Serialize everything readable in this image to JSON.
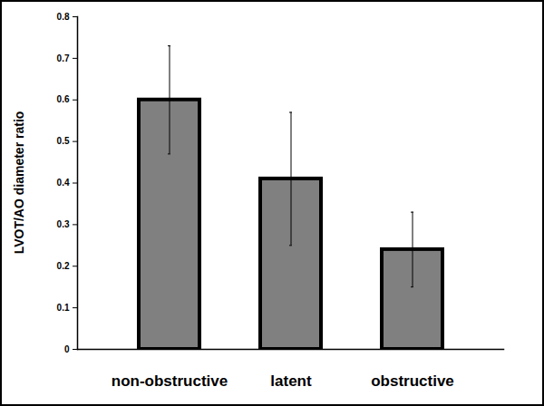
{
  "chart_data": {
    "type": "bar",
    "y_label": "LVOT/AO diameter ratio",
    "categories": [
      "non-obstructive",
      "latent",
      "obstructive"
    ],
    "values": [
      0.6,
      0.41,
      0.24
    ],
    "error": [
      0.13,
      0.16,
      0.09
    ],
    "color": "#808080",
    "ylim": [
      0,
      0.8
    ],
    "yticks": [
      0,
      0.1,
      0.2,
      0.3,
      0.4,
      0.5,
      0.6,
      0.7,
      0.8
    ],
    "grid": false
  }
}
